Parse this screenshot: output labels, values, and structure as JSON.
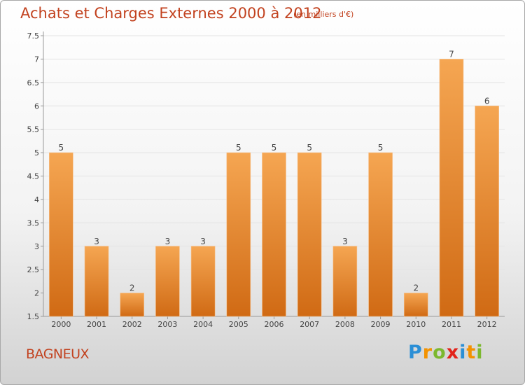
{
  "header": {
    "title": "Achats et Charges Externes 2000 à 2012",
    "subtitle": "(en milliers d'€)"
  },
  "footer": {
    "city": "BAGNEUX",
    "logo": "Proxiti"
  },
  "colors": {
    "bar_light": "#f5a652",
    "bar_dark": "#d06a14",
    "title": "#c2421f",
    "grid": "#e3e3e3"
  },
  "chart_data": {
    "type": "bar",
    "title": "Achats et Charges Externes 2000 à 2012",
    "subtitle": "(en milliers d'€)",
    "categories": [
      "2000",
      "2001",
      "2002",
      "2003",
      "2004",
      "2005",
      "2006",
      "2007",
      "2008",
      "2009",
      "2010",
      "2011",
      "2012"
    ],
    "values": [
      5,
      3,
      2,
      3,
      3,
      5,
      5,
      5,
      3,
      5,
      2,
      7,
      6
    ],
    "value_labels": [
      "5",
      "3",
      "2",
      "3",
      "3",
      "5",
      "5",
      "5",
      "3",
      "5",
      "2",
      "7",
      "6"
    ],
    "ylim": [
      1.5,
      7.5
    ],
    "yticks": [
      "1.5",
      "2",
      "2.5",
      "3",
      "3.5",
      "4",
      "4.5",
      "5",
      "5.5",
      "6",
      "6.5",
      "7",
      "7.5"
    ],
    "xlabel": "",
    "ylabel": "",
    "grid": true
  }
}
